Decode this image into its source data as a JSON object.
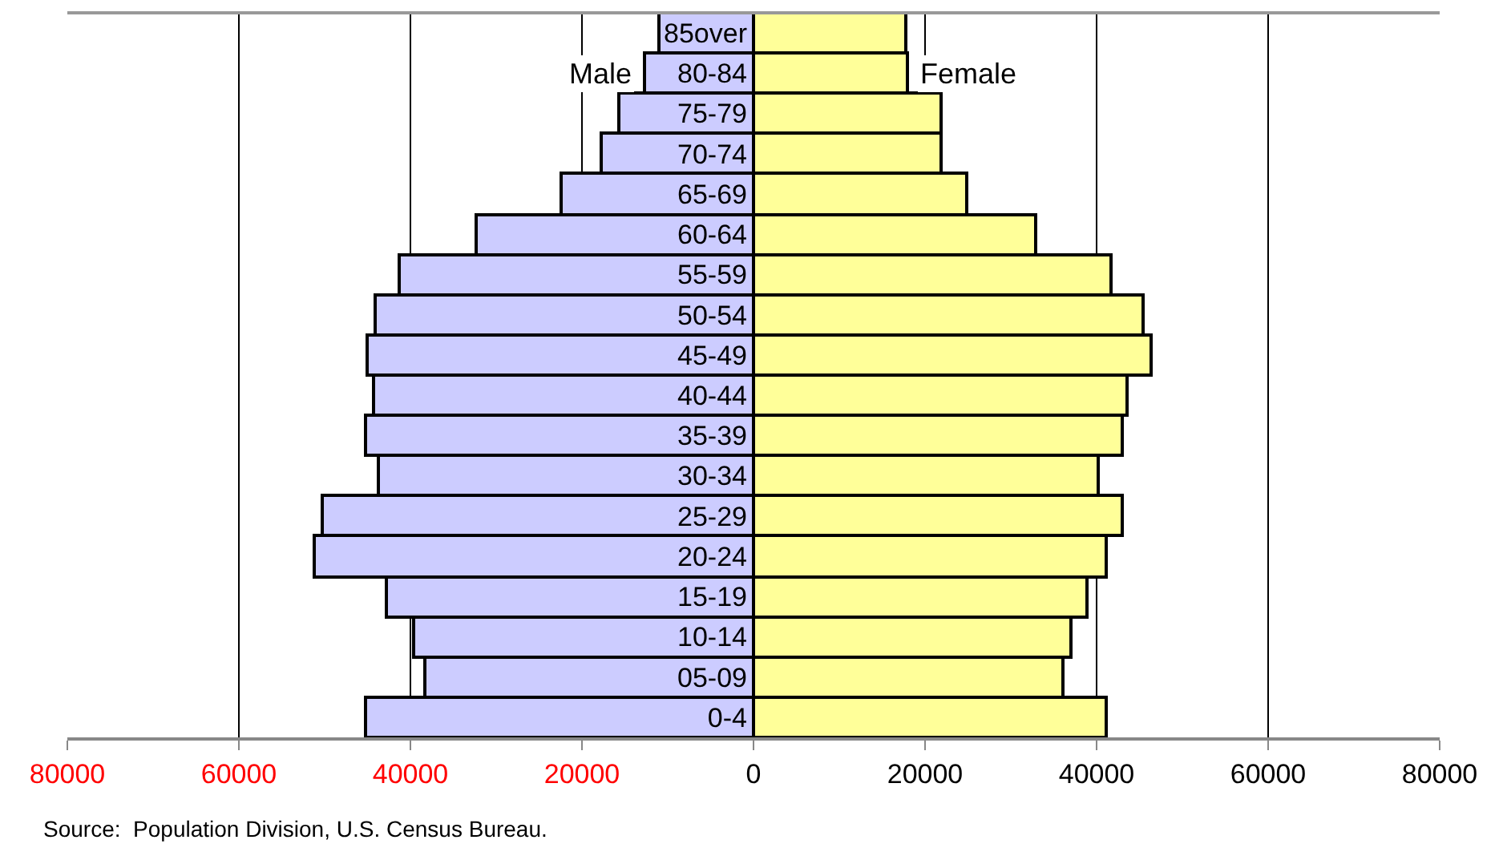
{
  "chart_data": {
    "type": "bar",
    "orientation": "horizontal",
    "stacked": true,
    "categories": [
      "85over",
      "80-84",
      "75-79",
      "70-74",
      "65-69",
      "60-64",
      "55-59",
      "50-54",
      "45-49",
      "40-44",
      "35-39",
      "30-34",
      "25-29",
      "20-24",
      "15-19",
      "10-14",
      "05-09",
      "0-4"
    ],
    "series": [
      {
        "name": "Male",
        "color": "#ccccff",
        "values": [
          -11000,
          -12800,
          -15700,
          -17800,
          -22500,
          -32300,
          -41400,
          -44100,
          -45000,
          -44300,
          -45300,
          -43700,
          -50200,
          -51200,
          -42800,
          -39600,
          -38300,
          -45200
        ]
      },
      {
        "name": "Female",
        "color": "#ffff99",
        "values": [
          17800,
          18000,
          21800,
          21900,
          24800,
          32900,
          41700,
          45500,
          46400,
          43500,
          43000,
          40100,
          43000,
          41200,
          38900,
          37000,
          36000,
          41200
        ]
      }
    ],
    "xlim": [
      -80000,
      80000
    ],
    "xticks": [
      {
        "value": -80000,
        "label": "80000"
      },
      {
        "value": -60000,
        "label": "60000"
      },
      {
        "value": -40000,
        "label": "40000"
      },
      {
        "value": -20000,
        "label": "20000"
      },
      0,
      20000,
      40000,
      60000,
      80000
    ],
    "grid": "x",
    "legend": false,
    "annotations": [
      "Source:  Population Division, U.S. Census Bureau."
    ]
  }
}
